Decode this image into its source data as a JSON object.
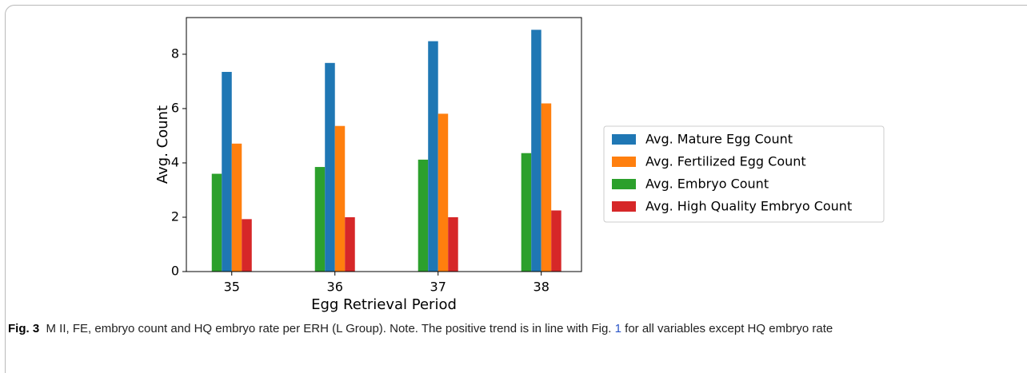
{
  "chart_data": {
    "type": "bar",
    "xlabel": "Egg Retrieval Period",
    "ylabel": "Avg. Count",
    "x": [
      35,
      36,
      37,
      38
    ],
    "series": [
      {
        "name": "Avg. Mature Egg Count",
        "color": "#1f77b4",
        "values": [
          7.35,
          7.68,
          8.48,
          8.9
        ]
      },
      {
        "name": "Avg. Fertilized Egg Count",
        "color": "#ff7f0e",
        "values": [
          4.71,
          5.36,
          5.81,
          6.19
        ]
      },
      {
        "name": "Avg. Embryo Count",
        "color": "#2ca02c",
        "values": [
          3.6,
          3.85,
          4.12,
          4.36
        ]
      },
      {
        "name": "Avg. High Quality Embryo Count",
        "color": "#d62728",
        "values": [
          1.93,
          2.0,
          2.0,
          2.25
        ]
      }
    ],
    "bar_order": [
      2,
      0,
      1,
      3
    ],
    "xlim": [
      34.56,
      38.39
    ],
    "xticks": [
      35,
      36,
      37,
      38
    ],
    "ylim": [
      0,
      9.35
    ],
    "yticks": [
      0,
      2,
      4,
      6,
      8
    ],
    "legend": "right"
  },
  "caption": {
    "label": "Fig. 3",
    "text_before": "M II, FE, embryo count and HQ embryo rate per ERH (L Group). Note. The positive trend is in line with Fig.",
    "link": "1",
    "text_after": "for all variables except HQ embryo rate"
  }
}
